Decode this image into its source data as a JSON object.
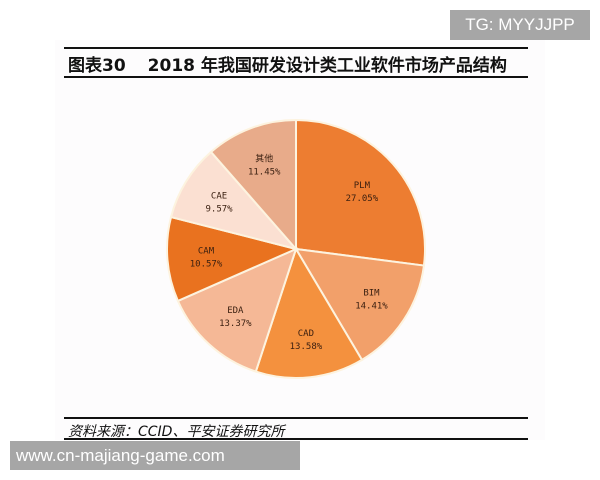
{
  "watermarks": {
    "top": "TG: MYYJJPP",
    "bottom": "www.cn-majiang-game.com"
  },
  "figure": {
    "number": "图表30",
    "title": "2018 年我国研发设计类工业软件市场产品结构",
    "source": "资料来源：CCID、平安证券研究所"
  },
  "chart_data": {
    "type": "pie",
    "title": "2018 年我国研发设计类工业软件市场产品结构",
    "start_angle_deg": 0,
    "direction": "clockwise",
    "slices": [
      {
        "label": "PLM",
        "value": 27.05,
        "display": "27.05%",
        "color": "#ed7d31"
      },
      {
        "label": "BIM",
        "value": 14.41,
        "display": "14.41%",
        "color": "#f2a06a"
      },
      {
        "label": "CAD",
        "value": 13.58,
        "display": "13.58%",
        "color": "#f4913e"
      },
      {
        "label": "EDA",
        "value": 13.37,
        "display": "13.37%",
        "color": "#f5b896"
      },
      {
        "label": "CAM",
        "value": 10.57,
        "display": "10.57%",
        "color": "#e9721f"
      },
      {
        "label": "CAE",
        "value": 9.57,
        "display": "9.57%",
        "color": "#fbe0d2"
      },
      {
        "label": "其他",
        "value": 11.45,
        "display": "11.45%",
        "color": "#e8ab8a"
      }
    ],
    "legend": "none",
    "labels_inside": true
  }
}
